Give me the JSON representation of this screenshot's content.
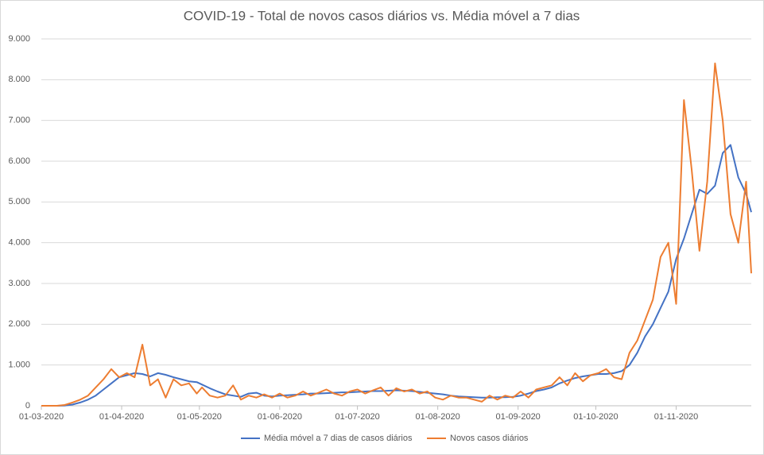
{
  "chart_data": {
    "type": "line",
    "title": "COVID-19 - Total  de novos casos diários vs. Média móvel a 7 dias",
    "x": [
      "01-03-2020",
      "04-03-2020",
      "07-03-2020",
      "10-03-2020",
      "13-03-2020",
      "16-03-2020",
      "19-03-2020",
      "22-03-2020",
      "25-03-2020",
      "28-03-2020",
      "31-03-2020",
      "03-04-2020",
      "06-04-2020",
      "09-04-2020",
      "12-04-2020",
      "15-04-2020",
      "18-04-2020",
      "21-04-2020",
      "24-04-2020",
      "27-04-2020",
      "30-04-2020",
      "02-05-2020",
      "05-05-2020",
      "08-05-2020",
      "11-05-2020",
      "14-05-2020",
      "17-05-2020",
      "20-05-2020",
      "23-05-2020",
      "26-05-2020",
      "29-05-2020",
      "01-06-2020",
      "04-06-2020",
      "07-06-2020",
      "10-06-2020",
      "13-06-2020",
      "16-06-2020",
      "19-06-2020",
      "22-06-2020",
      "25-06-2020",
      "28-06-2020",
      "01-07-2020",
      "04-07-2020",
      "07-07-2020",
      "10-07-2020",
      "13-07-2020",
      "16-07-2020",
      "19-07-2020",
      "22-07-2020",
      "25-07-2020",
      "28-07-2020",
      "31-07-2020",
      "03-08-2020",
      "06-08-2020",
      "09-08-2020",
      "12-08-2020",
      "15-08-2020",
      "18-08-2020",
      "21-08-2020",
      "24-08-2020",
      "27-08-2020",
      "30-08-2020",
      "02-09-2020",
      "05-09-2020",
      "08-09-2020",
      "11-09-2020",
      "14-09-2020",
      "17-09-2020",
      "20-09-2020",
      "23-09-2020",
      "26-09-2020",
      "29-09-2020",
      "02-10-2020",
      "05-10-2020",
      "08-10-2020",
      "11-10-2020",
      "14-10-2020",
      "17-10-2020",
      "20-10-2020",
      "23-10-2020",
      "26-10-2020",
      "29-10-2020",
      "01-11-2020",
      "04-11-2020",
      "07-11-2020",
      "10-11-2020",
      "13-11-2020",
      "16-11-2020",
      "19-11-2020",
      "22-11-2020",
      "25-11-2020",
      "28-11-2020",
      "30-11-2020"
    ],
    "series": [
      {
        "name": "Média móvel a 7 dias de casos diários",
        "color": "#4472c4",
        "values": [
          0,
          0,
          0,
          5,
          30,
          80,
          150,
          250,
          400,
          550,
          700,
          750,
          800,
          780,
          720,
          800,
          760,
          700,
          650,
          600,
          580,
          520,
          430,
          350,
          280,
          250,
          220,
          300,
          320,
          250,
          230,
          250,
          260,
          270,
          280,
          300,
          300,
          310,
          320,
          330,
          330,
          340,
          350,
          360,
          360,
          370,
          380,
          370,
          360,
          340,
          320,
          300,
          280,
          250,
          230,
          220,
          210,
          200,
          200,
          210,
          210,
          220,
          250,
          300,
          360,
          400,
          450,
          550,
          620,
          680,
          720,
          750,
          780,
          780,
          800,
          850,
          1000,
          1300,
          1700,
          2000,
          2400,
          2800,
          3600,
          4100,
          4700,
          5300,
          5200,
          5400,
          6200,
          6400,
          5600,
          5200,
          4750
        ]
      },
      {
        "name": "Novos casos diários",
        "color": "#ed7d31",
        "values": [
          0,
          0,
          0,
          20,
          80,
          150,
          250,
          450,
          650,
          900,
          700,
          800,
          700,
          1500,
          500,
          650,
          200,
          650,
          500,
          550,
          300,
          450,
          250,
          200,
          250,
          500,
          150,
          250,
          200,
          280,
          200,
          300,
          200,
          250,
          350,
          250,
          320,
          400,
          300,
          250,
          350,
          400,
          300,
          380,
          450,
          250,
          430,
          350,
          400,
          300,
          350,
          200,
          150,
          250,
          200,
          200,
          150,
          100,
          250,
          150,
          250,
          200,
          350,
          200,
          400,
          450,
          500,
          700,
          500,
          800,
          600,
          750,
          800,
          900,
          700,
          650,
          1300,
          1600,
          2100,
          2600,
          3650,
          4000,
          2500,
          7500,
          5800,
          3800,
          5500,
          8400,
          7000,
          4700,
          4000,
          5500,
          3250
        ]
      }
    ],
    "xlim": [
      "01-03-2020",
      "30-11-2020"
    ],
    "xticks": [
      "01-03-2020",
      "01-04-2020",
      "01-05-2020",
      "01-06-2020",
      "01-07-2020",
      "01-08-2020",
      "01-09-2020",
      "01-10-2020",
      "01-11-2020"
    ],
    "ylim": [
      0,
      9000
    ],
    "yticks": [
      0,
      {
        "value": 1000,
        "label": "1.000"
      },
      {
        "value": 2000,
        "label": "2.000"
      },
      {
        "value": 3000,
        "label": "3.000"
      },
      {
        "value": 4000,
        "label": "4.000"
      },
      {
        "value": 5000,
        "label": "5.000"
      },
      {
        "value": 6000,
        "label": "6.000"
      },
      {
        "value": 7000,
        "label": "7.000"
      },
      {
        "value": 8000,
        "label": "8.000"
      },
      {
        "value": 9000,
        "label": "9.000"
      }
    ],
    "grid": true,
    "legend": "bottom"
  }
}
